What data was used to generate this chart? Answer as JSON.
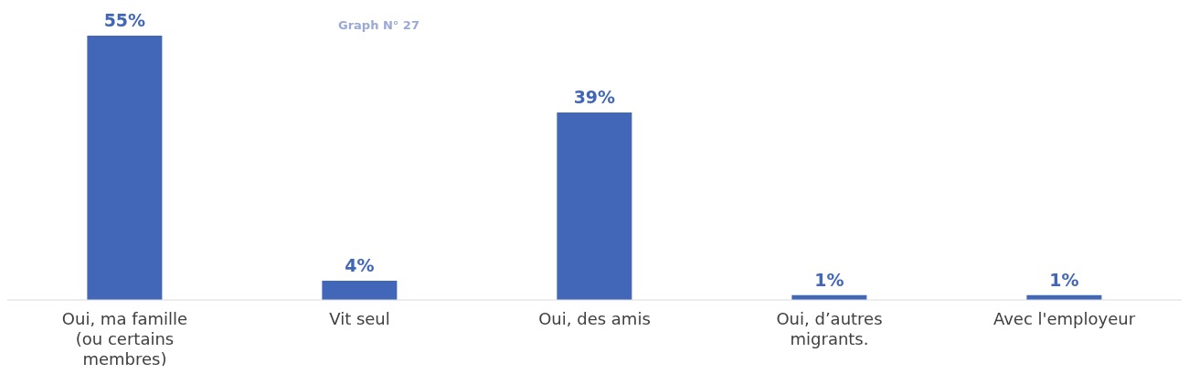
{
  "chart_data": {
    "type": "bar",
    "title": "Graph N° 27",
    "categories": [
      "Oui, ma famille (ou certains membres)",
      "Vit seul",
      "Oui, des amis",
      "Oui, d’autres migrants.",
      "Avec l'employeur"
    ],
    "values": [
      55,
      4,
      39,
      1,
      1
    ],
    "value_labels": [
      "55%",
      "4%",
      "39%",
      "1%",
      "1%"
    ],
    "color": "#4267b8",
    "grid": false,
    "legend": false
  }
}
